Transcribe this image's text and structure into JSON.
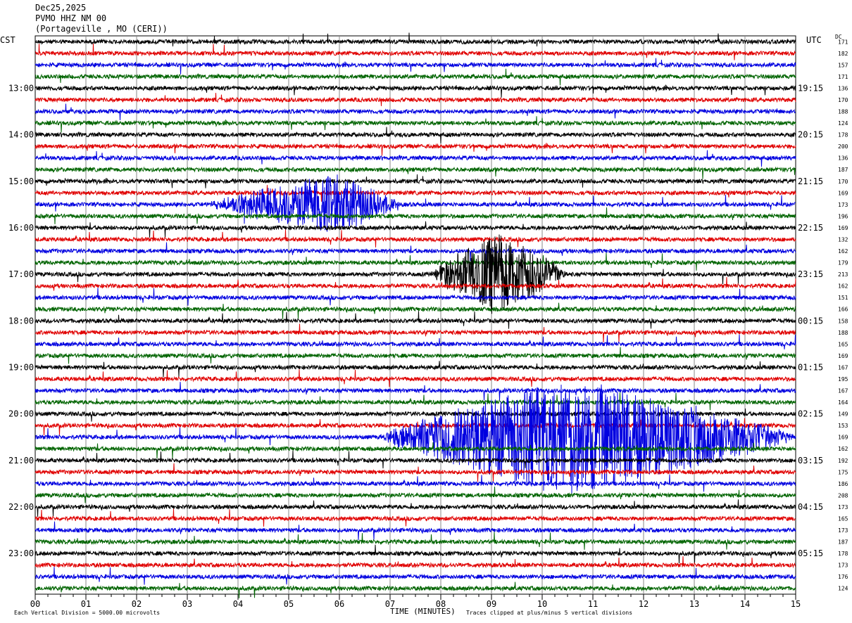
{
  "header": {
    "date": "Dec25,2025",
    "station": "PVMO HHZ NM 00",
    "location": "(Portageville , MO (CERI))"
  },
  "left_timezone": "CST",
  "right_timezone": "UTC",
  "dc_label": "DC",
  "footer": {
    "scale_note": "Each Vertical Division = 5000.00 microvolts",
    "xlabel": "TIME (MINUTES)",
    "clip_note": "Traces clipped at plus/minus 5 vertical divisions"
  },
  "chart_data": {
    "type": "line",
    "title": "PVMO HHZ NM 00",
    "xlabel": "TIME (MINUTES)",
    "xlim": [
      0,
      15
    ],
    "x_ticks": [
      "00",
      "01",
      "02",
      "03",
      "04",
      "05",
      "06",
      "07",
      "08",
      "09",
      "10",
      "11",
      "12",
      "13",
      "14",
      "15"
    ],
    "row_count": 48,
    "minutes_per_row": 15,
    "trace_colors": [
      "#000000",
      "#e00000",
      "#0000e0",
      "#006400"
    ],
    "left_time_labels": [
      {
        "row": 4,
        "label": "13:00"
      },
      {
        "row": 8,
        "label": "14:00"
      },
      {
        "row": 12,
        "label": "15:00"
      },
      {
        "row": 16,
        "label": "16:00"
      },
      {
        "row": 20,
        "label": "17:00"
      },
      {
        "row": 24,
        "label": "18:00"
      },
      {
        "row": 28,
        "label": "19:00"
      },
      {
        "row": 32,
        "label": "20:00"
      },
      {
        "row": 36,
        "label": "21:00"
      },
      {
        "row": 40,
        "label": "22:00"
      },
      {
        "row": 44,
        "label": "23:00"
      }
    ],
    "right_time_labels": [
      {
        "row": 4,
        "label": "19:15"
      },
      {
        "row": 8,
        "label": "20:15"
      },
      {
        "row": 12,
        "label": "21:15"
      },
      {
        "row": 16,
        "label": "22:15"
      },
      {
        "row": 20,
        "label": "23:15"
      },
      {
        "row": 24,
        "label": "00:15"
      },
      {
        "row": 28,
        "label": "01:15"
      },
      {
        "row": 32,
        "label": "02:15"
      },
      {
        "row": 36,
        "label": "03:15"
      },
      {
        "row": 40,
        "label": "04:15"
      },
      {
        "row": 44,
        "label": "05:15"
      }
    ],
    "dc_offsets": [
      "171",
      "182",
      "157",
      "171",
      "136",
      "170",
      "188",
      "124",
      "178",
      "200",
      "136",
      "187",
      "170",
      "169",
      "173",
      "196",
      "169",
      "132",
      "162",
      "179",
      "213",
      "162",
      "151",
      "166",
      "158",
      "188",
      "165",
      "169",
      "167",
      "195",
      "167",
      "164",
      "149",
      "153",
      "169",
      "162",
      "192",
      "175",
      "186",
      "208",
      "173",
      "165",
      "173",
      "187",
      "178",
      "173",
      "176",
      "124"
    ],
    "events": [
      {
        "row": 14,
        "start_min": 3.4,
        "peak_min": 5.9,
        "end_min": 7.2,
        "peak_divisions": 2.5
      },
      {
        "row": 20,
        "start_min": 7.8,
        "peak_min": 9.1,
        "end_min": 10.5,
        "peak_divisions": 3.5
      },
      {
        "row": 34,
        "start_min": 6.8,
        "peak_min": 10.5,
        "end_min": 15.0,
        "peak_divisions": 5.0
      }
    ],
    "clip_divisions": 5,
    "grid": true
  }
}
